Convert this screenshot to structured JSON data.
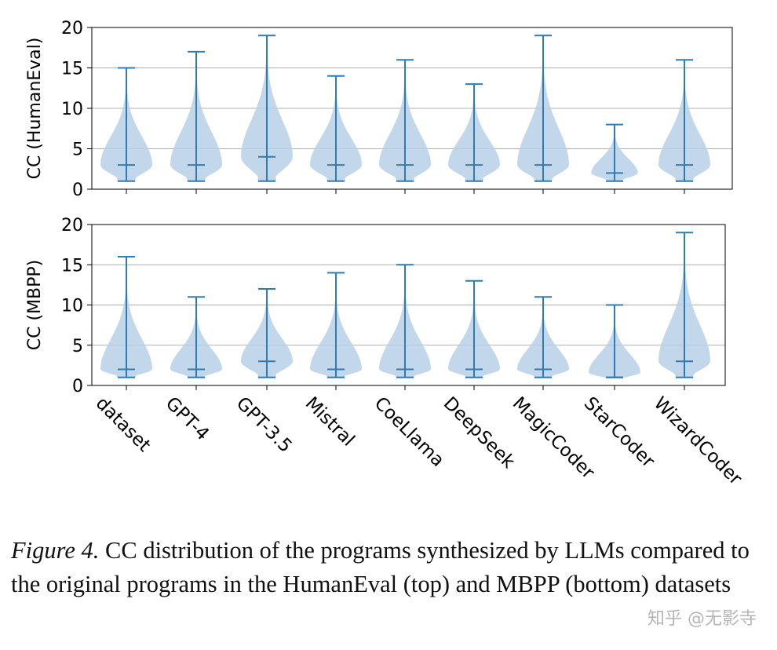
{
  "chart_data": [
    {
      "type": "violin",
      "ylabel": "CC (HumanEval)",
      "ylim": [
        0,
        20
      ],
      "yticks": [
        0,
        5,
        10,
        15,
        20
      ],
      "grid": true,
      "categories": [
        "dataset",
        "GPT-4",
        "GPT-3.5",
        "Mistral",
        "CoeLlama",
        "DeepSeek",
        "MagicCoder",
        "StarCoder",
        "WizardCoder"
      ],
      "min": [
        1,
        1,
        1,
        1,
        1,
        1,
        1,
        1,
        1
      ],
      "median": [
        3,
        3,
        4,
        3,
        3,
        3,
        3,
        2,
        3
      ],
      "max": [
        15,
        17,
        19,
        14,
        16,
        13,
        19,
        8,
        16
      ]
    },
    {
      "type": "violin",
      "ylabel": "CC (MBPP)",
      "ylim": [
        0,
        20
      ],
      "yticks": [
        0,
        5,
        10,
        15,
        20
      ],
      "grid": true,
      "categories": [
        "dataset",
        "GPT-4",
        "GPT-3.5",
        "Mistral",
        "CoeLlama",
        "DeepSeek",
        "MagicCoder",
        "StarCoder",
        "WizardCoder"
      ],
      "min": [
        1,
        1,
        1,
        1,
        1,
        1,
        1,
        1,
        1
      ],
      "median": [
        2,
        2,
        3,
        2,
        2,
        2,
        2,
        1,
        3
      ],
      "max": [
        16,
        11,
        12,
        14,
        15,
        13,
        11,
        10,
        19
      ]
    }
  ],
  "caption": {
    "label": "Figure 4.",
    "text": " CC distribution of the programs synthesized by LLMs compared to the original programs in the HumanEval (top) and MBPP (bottom) datasets"
  },
  "watermark": "知乎 @无影寺",
  "colors": {
    "line": "#2f7bb6",
    "fill": "#b7d1e6",
    "grid": "#b0b0b0",
    "axis": "#000000"
  }
}
